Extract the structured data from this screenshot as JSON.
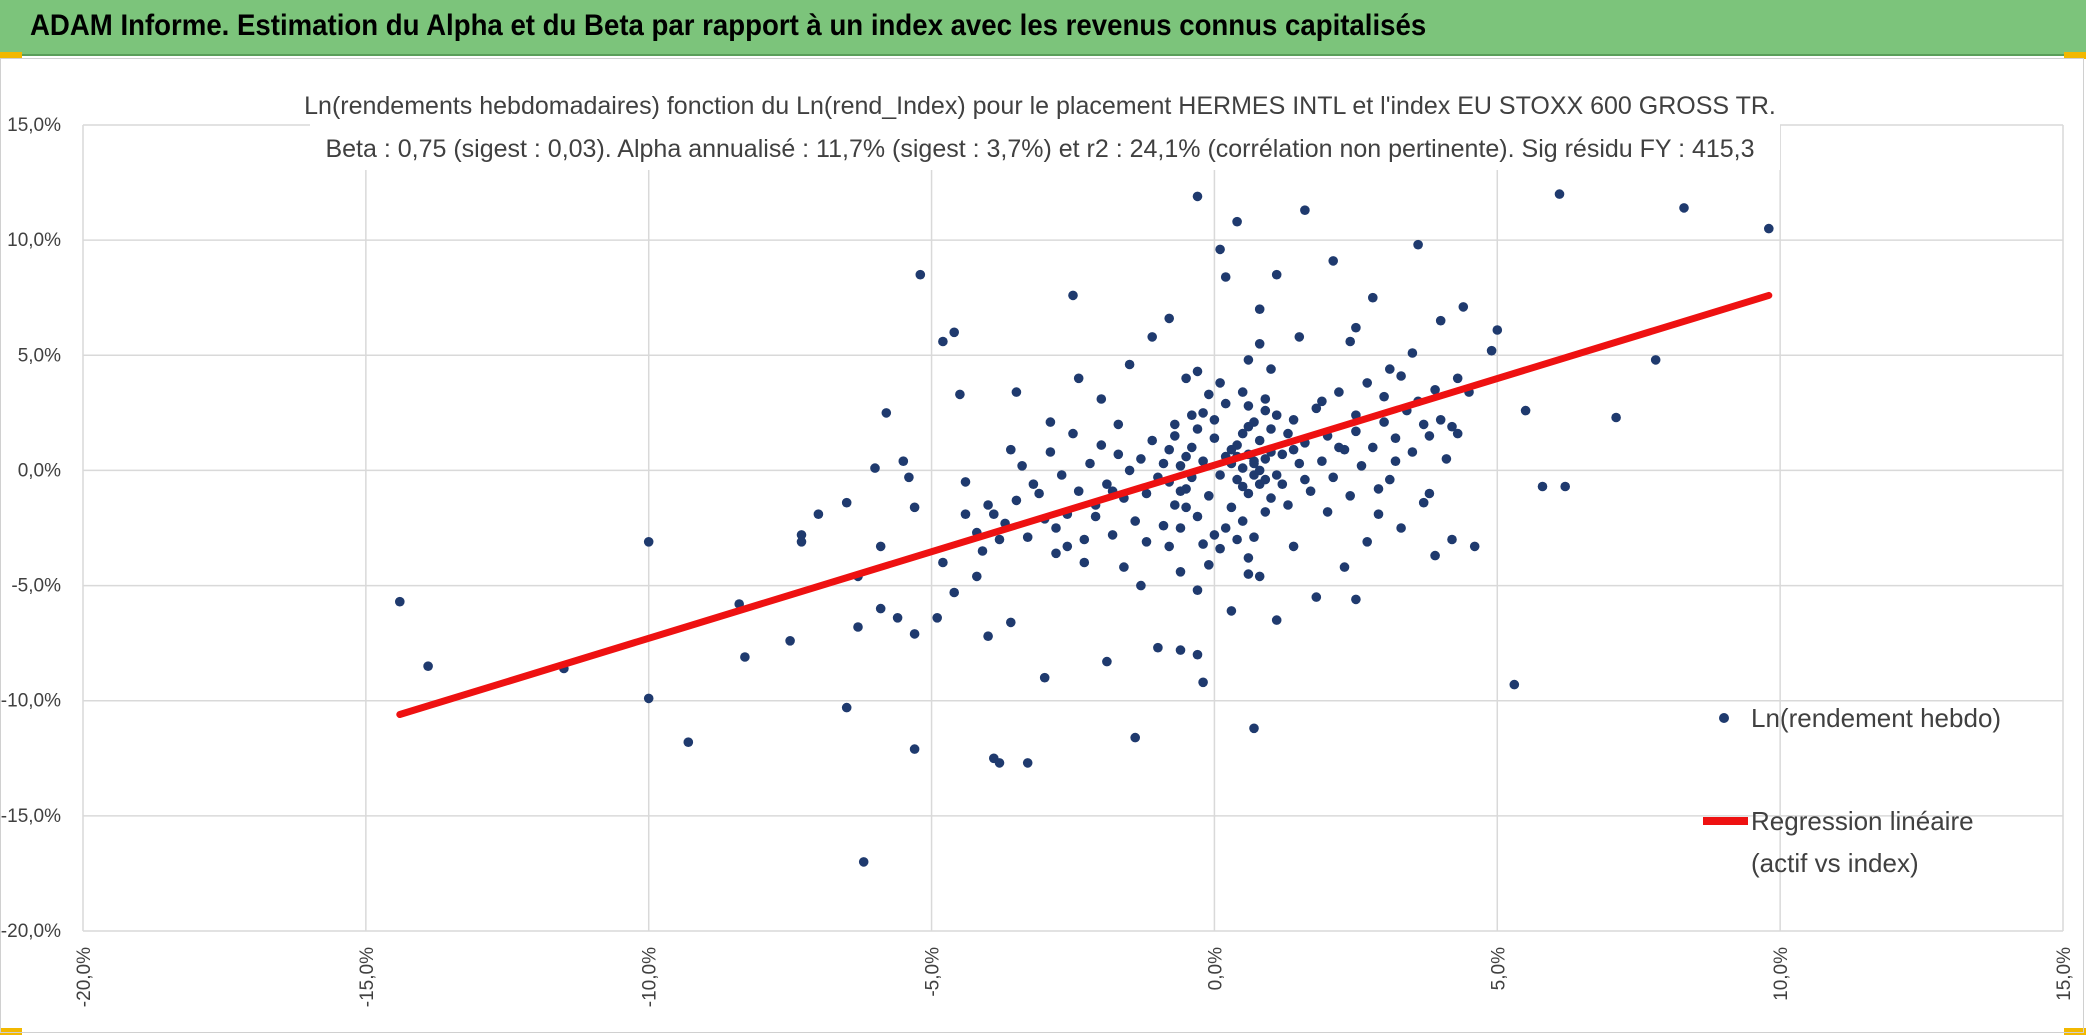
{
  "banner": {
    "title": "ADAM Informe. Estimation du Alpha et du Beta par rapport à un index avec les revenus connus capitalisés",
    "color": "#7cc47b"
  },
  "chart_data": {
    "type": "scatter",
    "title": "Ln(rendements hebdomadaires) fonction du Ln(rend_Index) pour le placement HERMES INTL et l'index EU STOXX 600 GROSS TR.",
    "subtitle": "Beta : 0,75 (sigest : 0,03). Alpha annualisé : 11,7% (sigest : 3,7%) et r2 : 24,1% (corrélation non pertinente). Sig résidu FY : 415,3",
    "xlabel": "",
    "ylabel": "",
    "xlim": [
      -20,
      15
    ],
    "ylim": [
      -20,
      15
    ],
    "x_ticks": [
      "-20,0%",
      "-15,0%",
      "-10,0%",
      "-5,0%",
      "0,0%",
      "5,0%",
      "10,0%",
      "15,0%"
    ],
    "y_ticks": [
      "15,0%",
      "10,0%",
      "5,0%",
      "0,0%",
      "-5,0%",
      "-10,0%",
      "-15,0%",
      "-20,0%"
    ],
    "grid": true,
    "legend_position": "right",
    "series": [
      {
        "name": "Ln(rendement hebdo)",
        "kind": "scatter",
        "color": "#1f3a6e",
        "points": [
          [
            -14.4,
            -5.7
          ],
          [
            -13.9,
            -8.5
          ],
          [
            -11.5,
            -8.6
          ],
          [
            -10.0,
            -3.1
          ],
          [
            -10.0,
            -9.9
          ],
          [
            -9.3,
            -11.8
          ],
          [
            -8.4,
            -5.8
          ],
          [
            -8.3,
            -8.1
          ],
          [
            -7.5,
            -7.4
          ],
          [
            -7.3,
            -2.8
          ],
          [
            -7.3,
            -3.1
          ],
          [
            -7.0,
            -1.9
          ],
          [
            -6.5,
            -1.4
          ],
          [
            -6.5,
            -10.3
          ],
          [
            -6.3,
            -4.6
          ],
          [
            -6.3,
            -6.8
          ],
          [
            -6.2,
            -17.0
          ],
          [
            -6.0,
            0.1
          ],
          [
            -5.9,
            -3.3
          ],
          [
            -5.9,
            -6.0
          ],
          [
            -5.8,
            2.5
          ],
          [
            -5.6,
            -6.4
          ],
          [
            -5.5,
            0.4
          ],
          [
            -5.4,
            -0.3
          ],
          [
            -5.3,
            -1.6
          ],
          [
            -5.3,
            -7.1
          ],
          [
            -5.3,
            -12.1
          ],
          [
            -5.2,
            8.5
          ],
          [
            -4.9,
            -6.4
          ],
          [
            -4.8,
            5.6
          ],
          [
            -4.6,
            6.0
          ],
          [
            -4.5,
            3.3
          ],
          [
            -4.4,
            -0.5
          ],
          [
            -4.2,
            -4.6
          ],
          [
            -4.0,
            -7.2
          ],
          [
            -3.9,
            -12.5
          ],
          [
            -3.8,
            -12.7
          ],
          [
            -3.6,
            -6.6
          ],
          [
            -3.5,
            3.4
          ],
          [
            -3.3,
            -12.7
          ],
          [
            -3.0,
            -9.0
          ],
          [
            -2.5,
            7.6
          ],
          [
            -1.9,
            -8.3
          ],
          [
            -1.4,
            -11.6
          ],
          [
            -0.3,
            11.9
          ],
          [
            -0.2,
            -9.2
          ],
          [
            0.1,
            9.6
          ],
          [
            0.4,
            10.8
          ],
          [
            0.7,
            -11.2
          ],
          [
            1.6,
            11.3
          ],
          [
            2.1,
            9.1
          ],
          [
            3.6,
            9.8
          ],
          [
            6.1,
            12.0
          ],
          [
            8.3,
            11.4
          ],
          [
            9.8,
            10.5
          ],
          [
            5.3,
            -9.3
          ],
          [
            4.6,
            -3.3
          ],
          [
            4.2,
            -3.0
          ],
          [
            3.9,
            -3.7
          ],
          [
            5.8,
            -0.7
          ],
          [
            6.2,
            -0.7
          ],
          [
            7.1,
            2.3
          ],
          [
            7.8,
            4.8
          ],
          [
            5.5,
            2.6
          ],
          [
            5.0,
            6.1
          ],
          [
            4.4,
            7.1
          ],
          [
            4.9,
            5.2
          ],
          [
            4.0,
            6.5
          ],
          [
            3.5,
            5.1
          ],
          [
            3.1,
            4.4
          ],
          [
            2.8,
            7.5
          ],
          [
            2.4,
            5.6
          ],
          [
            -1.3,
            -5.0
          ],
          [
            -1.0,
            -7.7
          ],
          [
            -0.6,
            -7.8
          ],
          [
            -0.3,
            -8.0
          ],
          [
            1.1,
            -6.5
          ],
          [
            1.8,
            -5.5
          ],
          [
            2.5,
            -5.6
          ],
          [
            2.3,
            -4.2
          ],
          [
            3.3,
            -2.5
          ],
          [
            -2.3,
            -4.0
          ],
          [
            -2.6,
            -3.3
          ],
          [
            -2.8,
            -2.5
          ],
          [
            -3.1,
            -1.0
          ],
          [
            -3.4,
            0.2
          ],
          [
            -3.9,
            -1.9
          ],
          [
            -4.1,
            -3.5
          ],
          [
            -3.7,
            -2.3
          ],
          [
            -2.9,
            2.1
          ],
          [
            -2.4,
            4.0
          ],
          [
            -2.0,
            3.1
          ],
          [
            -1.7,
            2.0
          ],
          [
            -1.5,
            4.6
          ],
          [
            -1.1,
            5.8
          ],
          [
            -0.8,
            6.6
          ],
          [
            -0.5,
            4.0
          ],
          [
            -0.6,
            -4.4
          ],
          [
            -1.2,
            -3.1
          ],
          [
            -1.8,
            -0.9
          ],
          [
            -2.1,
            -2.0
          ],
          [
            -1.6,
            -4.2
          ],
          [
            0.3,
            -6.1
          ],
          [
            0.6,
            -4.5
          ],
          [
            1.4,
            -3.3
          ],
          [
            2.0,
            -1.8
          ],
          [
            2.7,
            -3.1
          ],
          [
            1.5,
            5.8
          ],
          [
            0.8,
            7.0
          ],
          [
            0.2,
            8.4
          ],
          [
            1.1,
            8.5
          ],
          [
            2.5,
            6.2
          ],
          [
            3.0,
            3.2
          ],
          [
            3.7,
            2.0
          ],
          [
            4.3,
            1.6
          ],
          [
            4.5,
            3.4
          ],
          [
            3.8,
            -1.0
          ],
          [
            3.2,
            0.4
          ],
          [
            2.9,
            -0.8
          ],
          [
            2.5,
            2.4
          ],
          [
            2.2,
            1.0
          ],
          [
            1.9,
            3.0
          ],
          [
            1.6,
            -0.4
          ],
          [
            1.3,
            1.6
          ],
          [
            1.0,
            -1.2
          ],
          [
            0.9,
            2.6
          ],
          [
            0.7,
            0.3
          ],
          [
            0.6,
            1.9
          ],
          [
            0.5,
            -0.7
          ],
          [
            0.4,
            1.1
          ],
          [
            0.3,
            -1.6
          ],
          [
            0.2,
            0.6
          ],
          [
            0.1,
            -0.2
          ],
          [
            0.0,
            1.4
          ],
          [
            -0.1,
            -1.1
          ],
          [
            -0.2,
            0.4
          ],
          [
            -0.3,
            -2.0
          ],
          [
            -0.4,
            1.0
          ],
          [
            -0.5,
            -0.8
          ],
          [
            -0.6,
            0.2
          ],
          [
            -0.7,
            -1.5
          ],
          [
            -0.8,
            0.9
          ],
          [
            -0.9,
            -2.4
          ],
          [
            -1.0,
            -0.3
          ],
          [
            -1.1,
            1.3
          ],
          [
            -1.2,
            -1.0
          ],
          [
            -1.3,
            0.5
          ],
          [
            -1.4,
            -2.2
          ],
          [
            -1.5,
            0.0
          ],
          [
            -1.6,
            -1.2
          ],
          [
            -1.7,
            0.7
          ],
          [
            -1.8,
            -2.8
          ],
          [
            -1.9,
            -0.6
          ],
          [
            -2.0,
            1.1
          ],
          [
            -2.1,
            -1.5
          ],
          [
            -2.2,
            0.3
          ],
          [
            -2.3,
            -3.0
          ],
          [
            -2.4,
            -0.9
          ],
          [
            -2.5,
            1.6
          ],
          [
            -2.6,
            -1.9
          ],
          [
            -2.7,
            -0.2
          ],
          [
            -2.8,
            -3.6
          ],
          [
            -2.9,
            0.8
          ],
          [
            -3.0,
            -2.1
          ],
          [
            -3.2,
            -0.6
          ],
          [
            -3.3,
            -2.9
          ],
          [
            -3.5,
            -1.3
          ],
          [
            -3.6,
            0.9
          ],
          [
            -3.8,
            -3.0
          ],
          [
            -4.0,
            -1.5
          ],
          [
            -4.2,
            -2.7
          ],
          [
            -4.4,
            -1.9
          ],
          [
            -4.6,
            -5.3
          ],
          [
            -4.8,
            -4.0
          ],
          [
            0.8,
            -0.6
          ],
          [
            0.9,
            0.5
          ],
          [
            1.0,
            1.8
          ],
          [
            1.1,
            -0.2
          ],
          [
            1.2,
            0.7
          ],
          [
            1.3,
            -1.5
          ],
          [
            1.4,
            2.2
          ],
          [
            1.5,
            0.3
          ],
          [
            1.6,
            1.2
          ],
          [
            1.7,
            -0.9
          ],
          [
            1.8,
            2.7
          ],
          [
            1.9,
            0.4
          ],
          [
            2.0,
            1.5
          ],
          [
            2.1,
            -0.3
          ],
          [
            2.2,
            3.4
          ],
          [
            2.3,
            0.9
          ],
          [
            2.4,
            -1.1
          ],
          [
            2.5,
            1.7
          ],
          [
            2.6,
            0.2
          ],
          [
            2.7,
            3.8
          ],
          [
            2.8,
            1.0
          ],
          [
            2.9,
            -1.9
          ],
          [
            3.0,
            2.1
          ],
          [
            3.1,
            -0.4
          ],
          [
            3.2,
            1.4
          ],
          [
            3.3,
            4.1
          ],
          [
            3.4,
            2.6
          ],
          [
            3.5,
            0.8
          ],
          [
            3.6,
            3.0
          ],
          [
            3.7,
            -1.4
          ],
          [
            3.8,
            1.5
          ],
          [
            3.9,
            3.5
          ],
          [
            4.0,
            2.2
          ],
          [
            4.1,
            0.5
          ],
          [
            4.2,
            1.9
          ],
          [
            4.3,
            4.0
          ],
          [
            0.5,
            3.4
          ],
          [
            0.6,
            4.8
          ],
          [
            0.7,
            2.1
          ],
          [
            0.8,
            5.5
          ],
          [
            0.9,
            3.1
          ],
          [
            1.0,
            4.4
          ],
          [
            0.4,
            -3.0
          ],
          [
            0.5,
            -2.2
          ],
          [
            0.6,
            -3.8
          ],
          [
            0.7,
            -2.9
          ],
          [
            0.8,
            -4.6
          ],
          [
            0.9,
            -1.8
          ],
          [
            0.2,
            2.9
          ],
          [
            0.1,
            3.8
          ],
          [
            0.0,
            2.2
          ],
          [
            -0.1,
            3.3
          ],
          [
            -0.2,
            2.5
          ],
          [
            -0.3,
            4.3
          ],
          [
            0.2,
            -2.5
          ],
          [
            0.1,
            -3.4
          ],
          [
            0.0,
            -2.8
          ],
          [
            -0.1,
            -4.1
          ],
          [
            -0.2,
            -3.2
          ],
          [
            -0.3,
            -5.2
          ],
          [
            0.3,
            0.9
          ],
          [
            0.4,
            -0.4
          ],
          [
            0.5,
            0.1
          ],
          [
            0.6,
            0.7
          ],
          [
            0.7,
            -0.2
          ],
          [
            0.8,
            1.3
          ],
          [
            0.3,
            0.3
          ],
          [
            0.4,
            0.6
          ],
          [
            0.5,
            1.6
          ],
          [
            0.6,
            -1.0
          ],
          [
            0.7,
            0.4
          ],
          [
            0.8,
            0.0
          ],
          [
            1.0,
            0.8
          ],
          [
            1.2,
            -0.6
          ],
          [
            1.4,
            0.9
          ],
          [
            1.1,
            2.4
          ],
          [
            0.9,
            -0.4
          ],
          [
            0.6,
            2.8
          ],
          [
            -0.4,
            -0.3
          ],
          [
            -0.5,
            0.6
          ],
          [
            -0.6,
            -0.9
          ],
          [
            -0.7,
            1.5
          ],
          [
            -0.8,
            -0.5
          ],
          [
            -0.9,
            0.3
          ],
          [
            -0.3,
            1.8
          ],
          [
            -0.4,
            2.4
          ],
          [
            -0.5,
            -1.6
          ],
          [
            -0.6,
            -2.5
          ],
          [
            -0.7,
            2.0
          ],
          [
            -0.8,
            -3.3
          ]
        ]
      },
      {
        "name": "Regression linéaire\n(actif vs index)",
        "kind": "line",
        "color": "#ee1111",
        "points": [
          [
            -14.4,
            -10.6
          ],
          [
            9.8,
            7.6
          ]
        ]
      }
    ]
  }
}
